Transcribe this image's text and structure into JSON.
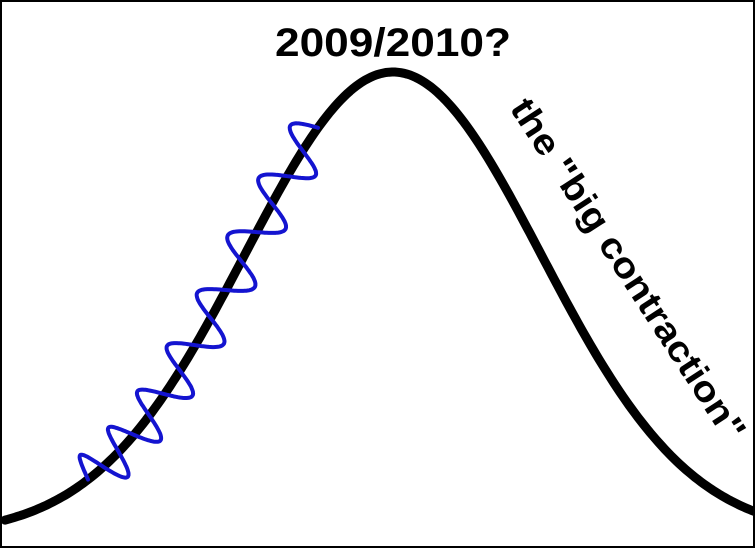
{
  "title": "2009/2010?",
  "annotation": "the \"big contraction\""
}
